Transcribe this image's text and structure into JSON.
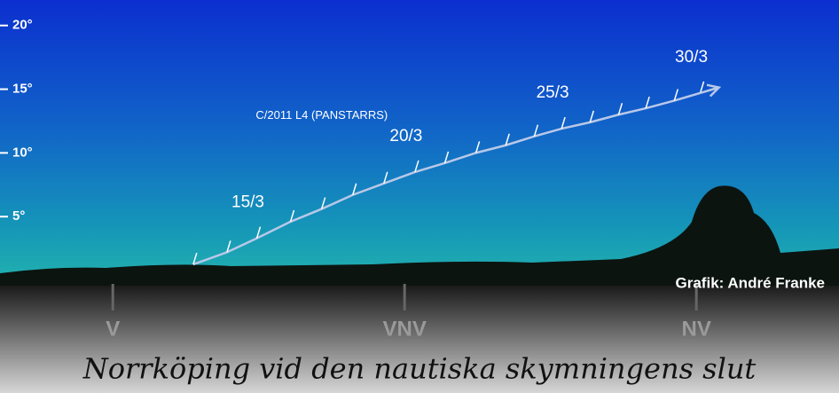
{
  "chart_data": {
    "type": "line",
    "title": "Norrköping vid den nautiska skymningens slut",
    "credit": "Grafik: André Franke",
    "xlim": [
      261.3,
      326
    ],
    "ylim": [
      0,
      22
    ],
    "xticks": [
      {
        "value": 270,
        "label": "V"
      },
      {
        "value": 292.5,
        "label": "VNV"
      },
      {
        "value": 315,
        "label": "NV"
      }
    ],
    "yticks": [
      {
        "value": 5,
        "label": "5°"
      },
      {
        "value": 10,
        "label": "10°"
      },
      {
        "value": 15,
        "label": "15°"
      },
      {
        "value": 20,
        "label": "20°"
      }
    ],
    "series": [
      {
        "name": "C/2011 L4 (PANSTARRS)",
        "color": "#b8c8e8",
        "x": [
          276.2,
          278.8,
          281.1,
          283.7,
          286.1,
          288.5,
          290.9,
          293.3,
          295.6,
          298,
          300.3,
          302.5,
          304.6,
          306.8,
          309,
          311.1,
          313.3,
          315.3
        ],
        "values": [
          1.25,
          2.2,
          3.3,
          4.6,
          5.6,
          6.7,
          7.6,
          8.5,
          9.2,
          10,
          10.6,
          11.3,
          11.9,
          12.4,
          13,
          13.5,
          14.1,
          14.7
        ],
        "point_labels": [
          null,
          null,
          "15/3",
          null,
          null,
          null,
          null,
          "20/3",
          null,
          null,
          null,
          null,
          "25/3",
          null,
          null,
          null,
          null,
          "30/3"
        ]
      }
    ]
  }
}
